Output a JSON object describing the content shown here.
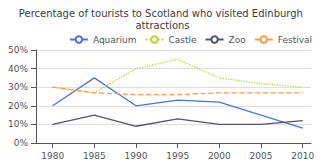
{
  "chart_data": {
    "type": "line",
    "title": "Percentage of tourists to Scotland who visited Edinburgh attractions",
    "x": [
      1980,
      1985,
      1990,
      1995,
      2000,
      2005,
      2010
    ],
    "series": [
      {
        "name": "Aquarium",
        "values": [
          20,
          35,
          20,
          23,
          22,
          15,
          8
        ],
        "line_style": "solid"
      },
      {
        "name": "Castle",
        "values": [
          30,
          27,
          40,
          45,
          35,
          32,
          30
        ],
        "line_style": "dotted"
      },
      {
        "name": "Zoo",
        "values": [
          10,
          15,
          9,
          13,
          10,
          10,
          12
        ],
        "line_style": "solid"
      },
      {
        "name": "Festival",
        "values": [
          30,
          27,
          26,
          26,
          27,
          27,
          27
        ],
        "line_style": "dashed"
      }
    ],
    "xlim": [
      1978,
      2011
    ],
    "xticks": [
      1980,
      1985,
      1990,
      1995,
      2000,
      2005,
      2010
    ],
    "ylim": [
      0,
      50
    ],
    "yticks": [
      {
        "value": 0,
        "label": "0%"
      },
      {
        "value": 10,
        "label": "10%"
      },
      {
        "value": 20,
        "label": "20%"
      },
      {
        "value": 30,
        "label": "30%"
      },
      {
        "value": 40,
        "label": "40%"
      },
      {
        "value": 50,
        "label": "50%"
      }
    ],
    "grid": true,
    "legend": "upper right"
  }
}
